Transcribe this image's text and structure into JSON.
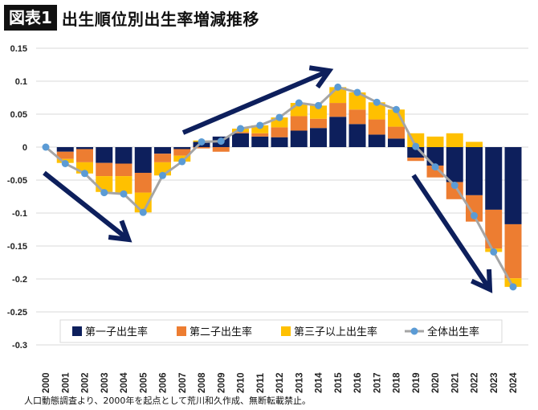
{
  "header": {
    "tag": "図表1",
    "title": "出生順位別出生率増減推移"
  },
  "footer": "人口動態調査より、2000年を起点として荒川和久作成、無断転載禁止。",
  "chart_data": {
    "type": "bar",
    "stacked": true,
    "title": "出生順位別出生率増減推移",
    "categories": [
      "2000",
      "2001",
      "2002",
      "2003",
      "2004",
      "2005",
      "2006",
      "2007",
      "2008",
      "2009",
      "2010",
      "2011",
      "2012",
      "2013",
      "2014",
      "2015",
      "2016",
      "2017",
      "2018",
      "2019",
      "2020",
      "2021",
      "2022",
      "2023",
      "2024"
    ],
    "ylim": [
      -0.3,
      0.15
    ],
    "yticks": [
      0.15,
      0.1,
      0.05,
      0,
      -0.05,
      -0.1,
      -0.15,
      -0.2,
      -0.25,
      -0.3
    ],
    "ytick_labels": [
      "0.15",
      "0.1",
      "0.05",
      "0",
      "-0.05",
      "-0.1",
      "-0.15",
      "-0.2",
      "-0.25",
      "-0.3"
    ],
    "grid": true,
    "legend_position": "bottom",
    "series": [
      {
        "name": "第一子出生率",
        "type": "bar",
        "color": "#0d1f5c",
        "values": [
          0,
          -0.007,
          -0.003,
          -0.024,
          -0.025,
          -0.039,
          -0.01,
          -0.003,
          0.008,
          0.016,
          0.021,
          0.016,
          0.015,
          0.025,
          0.029,
          0.046,
          0.035,
          0.019,
          0.013,
          -0.016,
          -0.028,
          -0.053,
          -0.073,
          -0.095,
          -0.117
        ]
      },
      {
        "name": "第二子出生率",
        "type": "bar",
        "color": "#ed7d31",
        "values": [
          0,
          -0.011,
          -0.02,
          -0.02,
          -0.019,
          -0.03,
          -0.013,
          -0.01,
          -0.002,
          -0.007,
          0.002,
          0.005,
          0.015,
          0.022,
          0.014,
          0.021,
          0.022,
          0.023,
          0.018,
          -0.005,
          -0.018,
          -0.026,
          -0.04,
          -0.059,
          -0.082
        ]
      },
      {
        "name": "第三子以上出生率",
        "type": "bar",
        "color": "#ffc000",
        "values": [
          0,
          -0.006,
          -0.017,
          -0.024,
          -0.027,
          -0.03,
          -0.02,
          -0.009,
          0.002,
          0.0,
          0.005,
          0.012,
          0.015,
          0.02,
          0.02,
          0.024,
          0.026,
          0.026,
          0.026,
          0.021,
          0.016,
          0.021,
          0.008,
          -0.005,
          -0.013
        ]
      },
      {
        "name": "全体出生率",
        "type": "line",
        "color": "#a5a5a5",
        "marker_color": "#5b9bd5",
        "values": [
          0,
          -0.025,
          -0.04,
          -0.069,
          -0.071,
          -0.099,
          -0.043,
          -0.022,
          0.008,
          0.009,
          0.028,
          0.033,
          0.045,
          0.067,
          0.063,
          0.091,
          0.083,
          0.068,
          0.057,
          0.001,
          -0.03,
          -0.058,
          -0.104,
          -0.159,
          -0.212
        ]
      }
    ],
    "annotations": [
      {
        "type": "arrow",
        "direction": "down",
        "color": "#0d1f5c"
      },
      {
        "type": "arrow",
        "direction": "up",
        "color": "#0d1f5c"
      },
      {
        "type": "arrow",
        "direction": "down",
        "color": "#0d1f5c"
      }
    ]
  }
}
